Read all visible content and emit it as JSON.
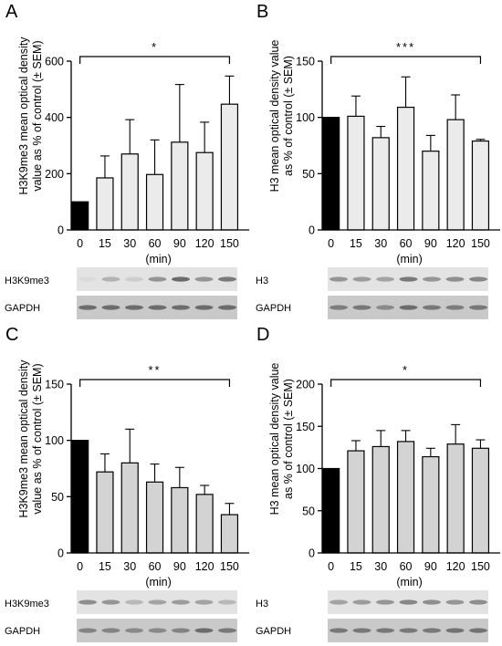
{
  "colors": {
    "black_bar": "#000000",
    "light_bar": "#ebebeb",
    "gray_bar": "#d3d3d3",
    "blot_light": "#e3e3e3",
    "blot_dark": "#c9c9c9",
    "band": "#555555"
  },
  "panels": [
    {
      "letter": "A",
      "ylabel_line1": "H3K9me3 mean optical density",
      "ylabel_line2": "value as % of control (± SEM)",
      "xlabel": "(min)",
      "significance": "*",
      "blot_top": "H3K9me3",
      "blot_bottom": "GAPDH"
    },
    {
      "letter": "B",
      "ylabel_line1": "H3 mean optical density value",
      "ylabel_line2": "as % of control (± SEM)",
      "xlabel": "(min)",
      "significance": "***",
      "blot_top": "H3",
      "blot_bottom": "GAPDH"
    },
    {
      "letter": "C",
      "ylabel_line1": "H3K9me3 mean optical density",
      "ylabel_line2": "value as % of control (± SEM)",
      "xlabel": "(min)",
      "significance": "**",
      "blot_top": "H3K9me3",
      "blot_bottom": "GAPDH"
    },
    {
      "letter": "D",
      "ylabel_line1": "H3 mean optical density value",
      "ylabel_line2": "as % of control (± SEM)",
      "xlabel": "(min)",
      "significance": "*",
      "blot_top": "H3",
      "blot_bottom": "GAPDH"
    }
  ],
  "chart_data": [
    {
      "type": "bar",
      "panel": "A",
      "categories": [
        "0",
        "15",
        "30",
        "60",
        "90",
        "120",
        "150"
      ],
      "values": [
        100,
        185,
        270,
        197,
        312,
        275,
        447
      ],
      "errors": [
        0,
        78,
        122,
        123,
        205,
        108,
        100
      ],
      "ylim": [
        0,
        600
      ],
      "yticks": [
        0,
        200,
        400,
        600
      ],
      "xlabel": "(min)",
      "ylabel": "H3K9me3 mean optical density value as % of control (± SEM)"
    },
    {
      "type": "bar",
      "panel": "B",
      "categories": [
        "0",
        "15",
        "30",
        "60",
        "90",
        "120",
        "150"
      ],
      "values": [
        100,
        101,
        82,
        109,
        70,
        98,
        79
      ],
      "errors": [
        0,
        18,
        10,
        27,
        14,
        22,
        1.5
      ],
      "ylim": [
        0,
        150
      ],
      "yticks": [
        0,
        50,
        100,
        150
      ],
      "xlabel": "(min)",
      "ylabel": "H3 mean optical density value as % of control (± SEM)"
    },
    {
      "type": "bar",
      "panel": "C",
      "categories": [
        "0",
        "15",
        "30",
        "60",
        "90",
        "120",
        "150"
      ],
      "values": [
        100,
        72,
        80,
        63,
        58,
        52,
        34
      ],
      "errors": [
        0,
        16,
        30,
        16,
        18,
        8,
        10
      ],
      "ylim": [
        0,
        150
      ],
      "yticks": [
        0,
        50,
        100,
        150
      ],
      "xlabel": "(min)",
      "ylabel": "H3K9me3 mean optical density value as % of control (± SEM)"
    },
    {
      "type": "bar",
      "panel": "D",
      "categories": [
        "0",
        "15",
        "30",
        "60",
        "90",
        "120",
        "150"
      ],
      "values": [
        100,
        121,
        126,
        132,
        114,
        129,
        124
      ],
      "errors": [
        0,
        12,
        19,
        13,
        10,
        23,
        10
      ],
      "ylim": [
        0,
        200
      ],
      "yticks": [
        0,
        50,
        100,
        150,
        200
      ],
      "xlabel": "(min)",
      "ylabel": "H3 mean optical density value as % of control (± SEM)"
    }
  ],
  "blots": [
    {
      "panel": "A",
      "top_bands": [
        0.05,
        0.35,
        0.15,
        0.55,
        0.85,
        0.55,
        0.75
      ],
      "bottom_bands": [
        0.8,
        0.8,
        0.8,
        0.8,
        0.8,
        0.8,
        0.8
      ]
    },
    {
      "panel": "B",
      "top_bands": [
        0.55,
        0.5,
        0.45,
        0.75,
        0.55,
        0.6,
        0.65
      ],
      "bottom_bands": [
        0.65,
        0.7,
        0.55,
        0.8,
        0.7,
        0.65,
        0.7
      ]
    },
    {
      "panel": "C",
      "top_bands": [
        0.6,
        0.55,
        0.3,
        0.45,
        0.5,
        0.45,
        0.3
      ],
      "bottom_bands": [
        0.6,
        0.6,
        0.55,
        0.55,
        0.6,
        0.8,
        0.7
      ]
    },
    {
      "panel": "D",
      "top_bands": [
        0.45,
        0.5,
        0.55,
        0.65,
        0.6,
        0.55,
        0.6
      ],
      "bottom_bands": [
        0.7,
        0.7,
        0.7,
        0.7,
        0.7,
        0.75,
        0.75
      ]
    }
  ]
}
